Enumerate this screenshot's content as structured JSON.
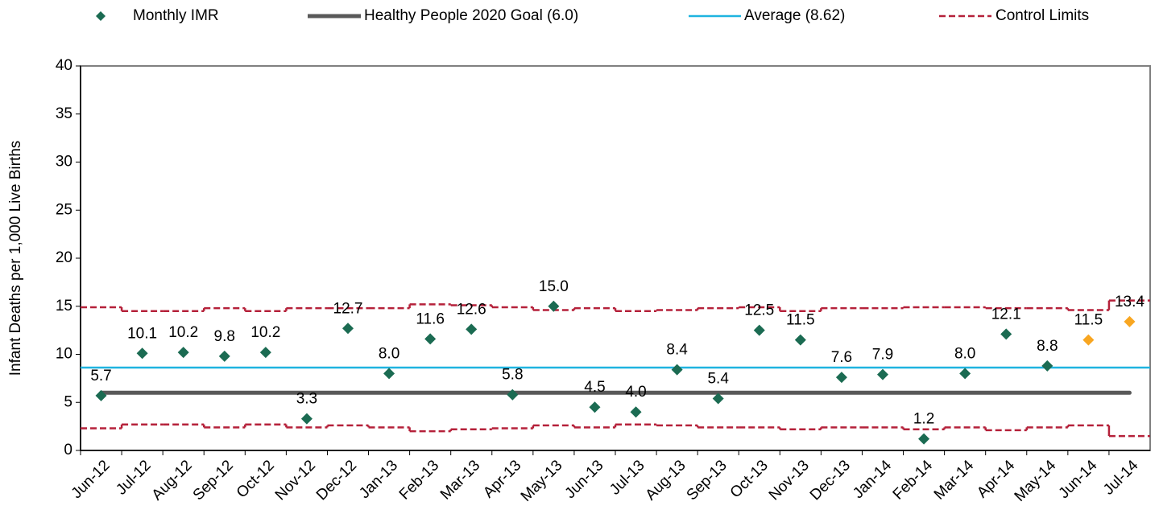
{
  "chart_data": {
    "type": "control",
    "y_label": "Infant Deaths per 1,000 Live Births",
    "ylim": [
      0,
      40
    ],
    "yticks": [
      0,
      5,
      10,
      15,
      20,
      25,
      30,
      35,
      40
    ],
    "categories": [
      "Jun-12",
      "Jul-12",
      "Aug-12",
      "Sep-12",
      "Oct-12",
      "Nov-12",
      "Dec-12",
      "Jan-13",
      "Feb-13",
      "Mar-13",
      "Apr-13",
      "May-13",
      "Jun-13",
      "Jul-13",
      "Aug-13",
      "Sep-13",
      "Oct-13",
      "Nov-13",
      "Dec-13",
      "Jan-14",
      "Feb-14",
      "Mar-14",
      "Apr-14",
      "May-14",
      "Jun-14",
      "Jul-14"
    ],
    "points": {
      "name": "Monthly IMR",
      "color": "#1b6b52",
      "point_colors": [
        "#1b6b52",
        "#1b6b52",
        "#1b6b52",
        "#1b6b52",
        "#1b6b52",
        "#1b6b52",
        "#1b6b52",
        "#1b6b52",
        "#1b6b52",
        "#1b6b52",
        "#1b6b52",
        "#1b6b52",
        "#1b6b52",
        "#1b6b52",
        "#1b6b52",
        "#1b6b52",
        "#1b6b52",
        "#1b6b52",
        "#1b6b52",
        "#1b6b52",
        "#1b6b52",
        "#1b6b52",
        "#1b6b52",
        "#1b6b52",
        "#f8a621",
        "#f8a621"
      ],
      "values": [
        5.7,
        10.1,
        10.2,
        9.8,
        10.2,
        3.3,
        12.7,
        8.0,
        11.6,
        12.6,
        5.8,
        15.0,
        4.5,
        4.0,
        8.4,
        5.4,
        12.5,
        11.5,
        7.6,
        7.9,
        1.2,
        8.0,
        12.1,
        8.8,
        11.5,
        13.4
      ],
      "value_labels": [
        "5.7",
        "10.1",
        "10.2",
        "9.8",
        "10.2",
        "3.3",
        "12.7",
        "8.0",
        "11.6",
        "12.6",
        "5.8",
        "15.0",
        "4.5",
        "4.0",
        "8.4",
        "5.4",
        "12.5",
        "11.5",
        "7.6",
        "7.9",
        "1.2",
        "8.0",
        "12.1",
        "8.8",
        "11.5",
        "13.4"
      ]
    },
    "goal": {
      "name": "Healthy People 2020 Goal (6.0)",
      "color": "#595959",
      "value": 6.0
    },
    "average": {
      "name": "Average (8.62)",
      "color": "#1fb4e0",
      "value": 8.62
    },
    "control_limits": {
      "name": "Control Limits",
      "color": "#b5213a",
      "upper": [
        14.9,
        14.5,
        14.5,
        14.8,
        14.5,
        14.8,
        14.8,
        14.8,
        15.2,
        15.1,
        14.9,
        14.6,
        14.8,
        14.5,
        14.6,
        14.8,
        14.9,
        14.5,
        14.8,
        14.8,
        14.9,
        14.9,
        14.8,
        14.8,
        14.6,
        15.6
      ],
      "lower": [
        2.3,
        2.7,
        2.7,
        2.4,
        2.7,
        2.4,
        2.6,
        2.4,
        2.0,
        2.2,
        2.3,
        2.6,
        2.4,
        2.7,
        2.6,
        2.4,
        2.4,
        2.2,
        2.4,
        2.4,
        2.2,
        2.4,
        2.1,
        2.4,
        2.6,
        1.5
      ]
    }
  }
}
